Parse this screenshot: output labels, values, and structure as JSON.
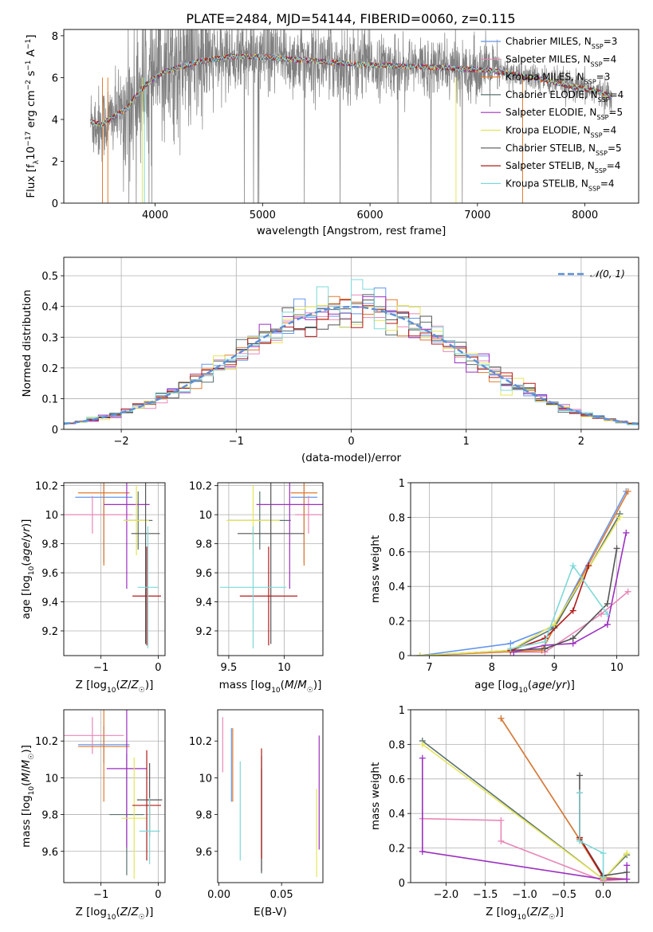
{
  "title": "PLATE=2484, MJD=54144, FIBERID=0060, z=0.115",
  "colors": [
    "#6495ed",
    "#e888b8",
    "#e07a2e",
    "#5a7070",
    "#9b30c0",
    "#e5e55a",
    "#555555",
    "#b01b1b",
    "#7ed8d8"
  ],
  "models": [
    {
      "name": "Chabrier MILES",
      "nssp": 3
    },
    {
      "name": "Salpeter MILES",
      "nssp": 4
    },
    {
      "name": "Kroupa MILES",
      "nssp": 3
    },
    {
      "name": "Chabrier ELODIE",
      "nssp": 4
    },
    {
      "name": "Salpeter ELODIE",
      "nssp": 5
    },
    {
      "name": "Kroupa ELODIE",
      "nssp": 4
    },
    {
      "name": "Chabrier STELIB",
      "nssp": 5
    },
    {
      "name": "Salpeter STELIB",
      "nssp": 4
    },
    {
      "name": "Kroupa STELIB",
      "nssp": 4
    }
  ],
  "chart_data": [
    {
      "id": "spectrum",
      "type": "line",
      "xlabel": "wavelength [Angstrom, rest frame]",
      "ylabel": "Flux [f_λ 10^-17 erg cm^-2 s^-1 A^-1]",
      "xlim": [
        3150,
        8500
      ],
      "ylim": [
        0,
        8.3
      ],
      "xticks": [
        4000,
        5000,
        6000,
        7000,
        8000
      ],
      "yticks": [
        0,
        2,
        4,
        6,
        8
      ],
      "continuum_x": [
        3400,
        3500,
        3600,
        3700,
        3750,
        3800,
        3850,
        3900,
        4000,
        4100,
        4200,
        4300,
        4400,
        4500,
        4700,
        4900,
        5100,
        5300,
        5500,
        5700,
        6000,
        6300,
        6600,
        6900,
        7100,
        7300,
        7500,
        7700,
        7900,
        8100,
        8250
      ],
      "continuum_y": [
        3.9,
        3.75,
        4.1,
        4.4,
        4.6,
        5.0,
        5.3,
        5.6,
        6.0,
        6.3,
        6.45,
        6.6,
        6.75,
        6.85,
        7.0,
        7.0,
        6.95,
        6.85,
        6.8,
        6.7,
        6.6,
        6.55,
        6.5,
        6.4,
        6.35,
        6.2,
        6.0,
        5.8,
        5.55,
        5.35,
        5.1
      ]
    },
    {
      "id": "residuals",
      "type": "line",
      "xlabel": "(data-model)/error",
      "ylabel": "Normed distribution",
      "xlim": [
        -2.5,
        2.5
      ],
      "ylim": [
        0,
        0.56
      ],
      "xticks": [
        -2,
        -1,
        0,
        1,
        2
      ],
      "yticks": [
        0.0,
        0.1,
        0.2,
        0.3,
        0.4,
        0.5
      ],
      "legend": "𝒩(0, 1)",
      "legend_position": "top-right",
      "grid": true
    },
    {
      "id": "age-vs-Z",
      "type": "scatter",
      "xlabel": "Z [log10(Z/Z☉)]",
      "ylabel": "age [log10(age/yr)]",
      "xlim": [
        -1.65,
        0.12
      ],
      "ylim": [
        9.03,
        10.22
      ],
      "xticks": [
        -1,
        0
      ],
      "yticks": [
        9.2,
        9.4,
        9.6,
        9.8,
        10.0,
        10.2
      ],
      "grid": true,
      "points": [
        {
          "x": -0.95,
          "y": 10.12,
          "xerr": 0.5,
          "yerr": 0.45
        },
        {
          "x": -1.15,
          "y": 10.0,
          "xerr": 0.7,
          "yerr": 0.13
        },
        {
          "x": -0.95,
          "y": 10.15,
          "xerr": 0.45,
          "yerr": 0.5
        },
        {
          "x": -0.35,
          "y": 9.96,
          "xerr": 0.25,
          "yerr": 0.2
        },
        {
          "x": -0.55,
          "y": 10.07,
          "xerr": 0.4,
          "yerr": 0.58
        },
        {
          "x": -0.38,
          "y": 9.96,
          "xerr": 0.22,
          "yerr": 0.24
        },
        {
          "x": -0.22,
          "y": 9.87,
          "xerr": 0.25,
          "yerr": 0.76
        },
        {
          "x": -0.2,
          "y": 9.44,
          "xerr": 0.25,
          "yerr": 0.34
        },
        {
          "x": -0.18,
          "y": 9.5,
          "xerr": 0.18,
          "yerr": 0.42
        }
      ]
    },
    {
      "id": "age-vs-mass",
      "type": "scatter",
      "xlabel": "mass [log10(M/M☉)]",
      "ylabel": "",
      "xlim": [
        9.4,
        10.35
      ],
      "ylim": [
        9.03,
        10.22
      ],
      "xticks": [
        9.5,
        10.0
      ],
      "yticks": [
        9.2,
        9.4,
        9.6,
        9.8,
        10.0,
        10.2
      ],
      "grid": true,
      "points": [
        {
          "x": 10.18,
          "y": 10.12,
          "xerr": 0.12,
          "yerr": 0.45
        },
        {
          "x": 10.22,
          "y": 10.0,
          "xerr": 0.12,
          "yerr": 0.13
        },
        {
          "x": 10.18,
          "y": 10.15,
          "xerr": 0.12,
          "yerr": 0.5
        },
        {
          "x": 9.78,
          "y": 9.96,
          "xerr": 0.28,
          "yerr": 0.2
        },
        {
          "x": 10.05,
          "y": 10.07,
          "xerr": 0.3,
          "yerr": 0.58
        },
        {
          "x": 9.72,
          "y": 9.96,
          "xerr": 0.24,
          "yerr": 0.24
        },
        {
          "x": 9.88,
          "y": 9.87,
          "xerr": 0.3,
          "yerr": 0.76
        },
        {
          "x": 9.86,
          "y": 9.44,
          "xerr": 0.26,
          "yerr": 0.34
        },
        {
          "x": 9.72,
          "y": 9.5,
          "xerr": 0.3,
          "yerr": 0.42
        }
      ]
    },
    {
      "id": "mass-weight-vs-age",
      "type": "line",
      "xlabel": "age [log10(age/yr)]",
      "ylabel": "mass weight",
      "xlim": [
        6.7,
        10.35
      ],
      "ylim": [
        0,
        1.0
      ],
      "xticks": [
        7,
        8,
        9,
        10
      ],
      "yticks": [
        0.0,
        0.2,
        0.4,
        0.6,
        0.8,
        1.0
      ],
      "grid": true,
      "series": [
        {
          "x": [
            6.85,
            8.3,
            9.0,
            10.15
          ],
          "y": [
            0.0,
            0.07,
            0.17,
            0.95
          ]
        },
        {
          "x": [
            8.3,
            8.85,
            9.75,
            10.18
          ],
          "y": [
            0.02,
            0.02,
            0.24,
            0.37
          ]
        },
        {
          "x": [
            6.85,
            8.8,
            9.0,
            10.18
          ],
          "y": [
            0.0,
            0.03,
            0.16,
            0.95
          ]
        },
        {
          "x": [
            6.85,
            8.3,
            9.0,
            10.05
          ],
          "y": [
            0.0,
            0.03,
            0.16,
            0.82
          ]
        },
        {
          "x": [
            8.35,
            8.85,
            9.3,
            9.85,
            10.15
          ],
          "y": [
            0.02,
            0.06,
            0.07,
            0.18,
            0.71
          ]
        },
        {
          "x": [
            6.85,
            8.3,
            9.0,
            10.05
          ],
          "y": [
            0.0,
            0.03,
            0.18,
            0.8
          ]
        },
        {
          "x": [
            8.3,
            8.85,
            9.3,
            9.85,
            10.0
          ],
          "y": [
            0.03,
            0.04,
            0.1,
            0.3,
            0.62
          ]
        },
        {
          "x": [
            8.3,
            8.85,
            9.3,
            9.55
          ],
          "y": [
            0.03,
            0.1,
            0.26,
            0.52
          ]
        },
        {
          "x": [
            8.3,
            8.85,
            9.3,
            9.85
          ],
          "y": [
            0.04,
            0.08,
            0.52,
            0.24
          ]
        }
      ]
    },
    {
      "id": "mass-vs-Z",
      "type": "scatter",
      "xlabel": "Z [log10(Z/Z☉)]",
      "ylabel": "mass [log10(M/M☉)]",
      "xlim": [
        -1.65,
        0.12
      ],
      "ylim": [
        9.43,
        10.37
      ],
      "xticks": [
        -1,
        0
      ],
      "yticks": [
        9.6,
        9.8,
        10.0,
        10.2
      ],
      "grid": true,
      "points": [
        {
          "x": -0.95,
          "y": 10.18,
          "xerr": 0.45,
          "yerr": 0.1
        },
        {
          "x": -1.15,
          "y": 10.23,
          "xerr": 0.55,
          "yerr": 0.1
        },
        {
          "x": -0.95,
          "y": 10.17,
          "xerr": 0.45,
          "yerr": 0.3
        },
        {
          "x": -0.55,
          "y": 9.8,
          "xerr": 0.3,
          "yerr": 0.33
        },
        {
          "x": -0.55,
          "y": 10.05,
          "xerr": 0.35,
          "yerr": 0.43
        },
        {
          "x": -0.42,
          "y": 9.78,
          "xerr": 0.22,
          "yerr": 0.33
        },
        {
          "x": -0.15,
          "y": 9.88,
          "xerr": 0.22,
          "yerr": 0.2
        },
        {
          "x": -0.2,
          "y": 9.85,
          "xerr": 0.25,
          "yerr": 0.3
        },
        {
          "x": -0.15,
          "y": 9.71,
          "xerr": 0.18,
          "yerr": 0.18
        }
      ]
    },
    {
      "id": "mass-vs-ebv",
      "type": "scatter",
      "xlabel": "E(B-V)",
      "ylabel": "",
      "xlim": [
        -0.001,
        0.083
      ],
      "ylim": [
        9.43,
        10.37
      ],
      "xticks": [
        0.0,
        0.05
      ],
      "tick_labels": [
        "0.00",
        "0.05"
      ],
      "yticks": [
        9.6,
        9.8,
        10.0,
        10.2
      ],
      "grid": false,
      "points": [
        {
          "x": 0.01,
          "y": 10.07,
          "yerr": 0.2
        },
        {
          "x": 0.003,
          "y": 10.18,
          "yerr": 0.15
        },
        {
          "x": 0.011,
          "y": 10.07,
          "yerr": 0.2
        },
        {
          "x": 0.034,
          "y": 9.8,
          "yerr": 0.32
        },
        {
          "x": 0.08,
          "y": 9.92,
          "yerr": 0.31
        },
        {
          "x": 0.078,
          "y": 9.7,
          "yerr": 0.24
        },
        {
          "x": 0.034,
          "y": 9.77,
          "yerr": 0.28
        },
        {
          "x": 0.034,
          "y": 9.86,
          "yerr": 0.3
        },
        {
          "x": 0.017,
          "y": 9.82,
          "yerr": 0.27
        }
      ]
    },
    {
      "id": "mass-weight-vs-Z",
      "type": "line",
      "xlabel": "Z [log10(Z/Z☉)]",
      "ylabel": "mass weight",
      "xlim": [
        -2.45,
        0.45
      ],
      "ylim": [
        0,
        1.0
      ],
      "xticks": [
        -2.0,
        -1.5,
        -1.0,
        -0.5,
        0.0
      ],
      "tick_labels": [
        "−2.0",
        "−1.5",
        "−1.0",
        "−0.5",
        "0.0"
      ],
      "yticks": [
        0.0,
        0.2,
        0.4,
        0.6,
        0.8,
        1.0
      ],
      "grid": true,
      "series": [
        {
          "x": [
            -1.3,
            -0.3,
            0.0,
            0.3
          ],
          "y": [
            0.95,
            0.25,
            0.03,
            0.02
          ]
        },
        {
          "x": [
            -2.3,
            -1.3,
            -1.3,
            0.0,
            0.3
          ],
          "y": [
            0.37,
            0.36,
            0.24,
            0.01,
            0.02
          ]
        },
        {
          "x": [
            -1.3,
            -0.3,
            0.0,
            0.3
          ],
          "y": [
            0.95,
            0.25,
            0.03,
            0.02
          ]
        },
        {
          "x": [
            -2.3,
            0.0,
            0.3
          ],
          "y": [
            0.82,
            0.02,
            0.16
          ]
        },
        {
          "x": [
            -2.3,
            -2.3,
            0.0,
            0.3,
            0.3
          ],
          "y": [
            0.72,
            0.18,
            0.02,
            0.02,
            0.1
          ]
        },
        {
          "x": [
            -2.3,
            0.0,
            0.3
          ],
          "y": [
            0.8,
            0.02,
            0.17
          ]
        },
        {
          "x": [
            -0.3,
            -0.3,
            0.0,
            0.3
          ],
          "y": [
            0.62,
            0.26,
            0.04,
            0.06
          ]
        },
        {
          "x": [
            -0.3,
            -0.3,
            0.0
          ],
          "y": [
            0.52,
            0.26,
            0.03
          ]
        },
        {
          "x": [
            -0.3,
            -0.3,
            0.0,
            0.0
          ],
          "y": [
            0.52,
            0.24,
            0.17,
            0.03
          ]
        }
      ]
    }
  ]
}
